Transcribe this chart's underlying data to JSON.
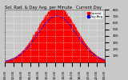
{
  "title": "Sol. Rad. & Day Avg. per Minute   Current Day",
  "bg_color": "#c8c8c8",
  "plot_bg": "#c8c8c8",
  "bar_color": "#ff0000",
  "avg_line_color": "#0000ff",
  "grid_color": "#ffffff",
  "legend_labels": [
    "Current",
    "Day Avg"
  ],
  "legend_colors": [
    "#ff0000",
    "#0000ff"
  ],
  "ylim": [
    0,
    800
  ],
  "yticks": [
    100,
    200,
    300,
    400,
    500,
    600,
    700,
    800
  ],
  "num_points": 1440,
  "peak_minute": 750,
  "peak_value": 800,
  "sigma": 280,
  "title_fontsize": 3.8,
  "tick_fontsize": 2.8,
  "figwidth": 1.6,
  "figheight": 1.0,
  "dpi": 100
}
